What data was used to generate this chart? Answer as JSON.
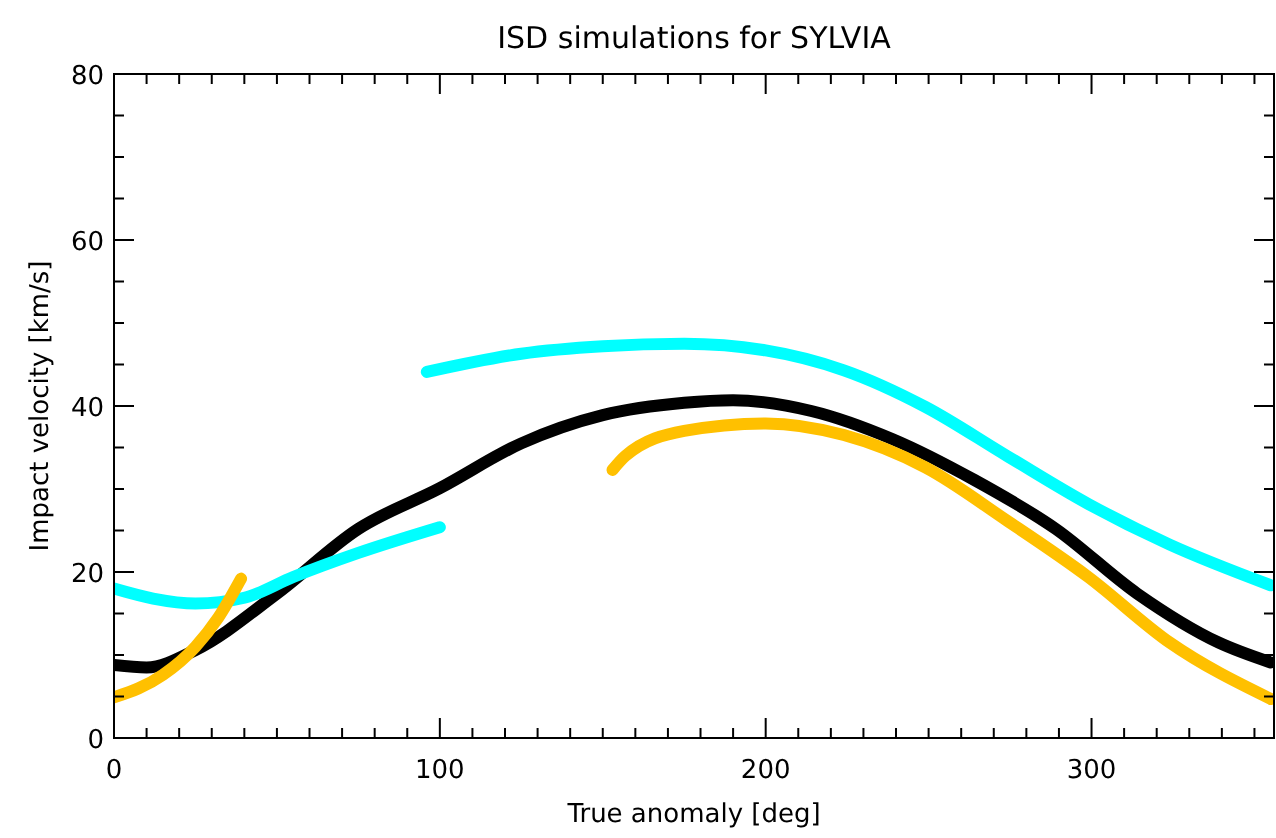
{
  "chart_data": {
    "type": "line",
    "title": "ISD simulations for SYLVIA",
    "xlabel": "True anomaly [deg]",
    "ylabel": "Impact velocity  [km/s]",
    "xlim": [
      0,
      356
    ],
    "ylim": [
      0,
      80
    ],
    "xticks": [
      0,
      {
        "value": 10,
        "label": null
      },
      {
        "value": 20,
        "label": null
      },
      {
        "value": 30,
        "label": null
      },
      {
        "value": 40,
        "label": null
      },
      {
        "value": 50,
        "label": null
      },
      {
        "value": 60,
        "label": null
      },
      {
        "value": 70,
        "label": null
      },
      {
        "value": 80,
        "label": null
      },
      {
        "value": 90,
        "label": null
      },
      100,
      {
        "value": 110,
        "label": null
      },
      {
        "value": 120,
        "label": null
      },
      {
        "value": 130,
        "label": null
      },
      {
        "value": 140,
        "label": null
      },
      {
        "value": 150,
        "label": null
      },
      {
        "value": 160,
        "label": null
      },
      {
        "value": 170,
        "label": null
      },
      {
        "value": 180,
        "label": null
      },
      {
        "value": 190,
        "label": null
      },
      200,
      {
        "value": 210,
        "label": null
      },
      {
        "value": 220,
        "label": null
      },
      {
        "value": 230,
        "label": null
      },
      {
        "value": 240,
        "label": null
      },
      {
        "value": 250,
        "label": null
      },
      {
        "value": 260,
        "label": null
      },
      {
        "value": 270,
        "label": null
      },
      {
        "value": 280,
        "label": null
      },
      {
        "value": 290,
        "label": null
      },
      300,
      {
        "value": 310,
        "label": null
      },
      {
        "value": 320,
        "label": null
      },
      {
        "value": 330,
        "label": null
      },
      {
        "value": 340,
        "label": null
      },
      {
        "value": 350,
        "label": null
      }
    ],
    "yticks": [
      0,
      {
        "value": 5,
        "label": null
      },
      {
        "value": 10,
        "label": null
      },
      {
        "value": 15,
        "label": null
      },
      20,
      {
        "value": 25,
        "label": null
      },
      {
        "value": 30,
        "label": null
      },
      {
        "value": 35,
        "label": null
      },
      40,
      {
        "value": 45,
        "label": null
      },
      {
        "value": 50,
        "label": null
      },
      {
        "value": 55,
        "label": null
      },
      60,
      {
        "value": 65,
        "label": null
      },
      {
        "value": 70,
        "label": null
      },
      {
        "value": 75,
        "label": null
      },
      80
    ],
    "grid": false,
    "marker": "none",
    "line_style": "solid",
    "series": [
      {
        "color": "#000000",
        "x": [
          0,
          10,
          25,
          50,
          75,
          100,
          125,
          150,
          175,
          190,
          214,
          239,
          264,
          289,
          314,
          339,
          355
        ],
        "values": [
          8.8,
          8.5,
          10.6,
          17.4,
          25.2,
          30.1,
          35.5,
          38.9,
          40.4,
          40.7,
          39.4,
          36,
          31.1,
          25.2,
          17.4,
          11.5,
          9.1
        ]
      },
      {
        "color": "#00ffff",
        "x": [
          0,
          12,
          25,
          40,
          55,
          75,
          100
        ],
        "values": [
          18,
          16.8,
          16.2,
          16.9,
          19.4,
          22.3,
          25.4
        ]
      },
      {
        "color": "#00ffff",
        "x": [
          96,
          125,
          150,
          175,
          200,
          224,
          249,
          274,
          299,
          324,
          355
        ],
        "values": [
          44.1,
          46.3,
          47.2,
          47.5,
          46.7,
          44.3,
          39.9,
          34,
          28.2,
          23.3,
          18.4
        ]
      },
      {
        "color": "#ffc000",
        "x": [
          0,
          15,
          25,
          32,
          39
        ],
        "values": [
          4.9,
          7.6,
          11,
          14.5,
          19.2
        ]
      },
      {
        "color": "#ffc000",
        "x": [
          153,
          157,
          175,
          200,
          224,
          249,
          274,
          299,
          324,
          355
        ],
        "values": [
          32.3,
          34,
          37,
          37.9,
          36.5,
          32.6,
          26.2,
          19.4,
          11.5,
          4.7
        ]
      }
    ]
  }
}
